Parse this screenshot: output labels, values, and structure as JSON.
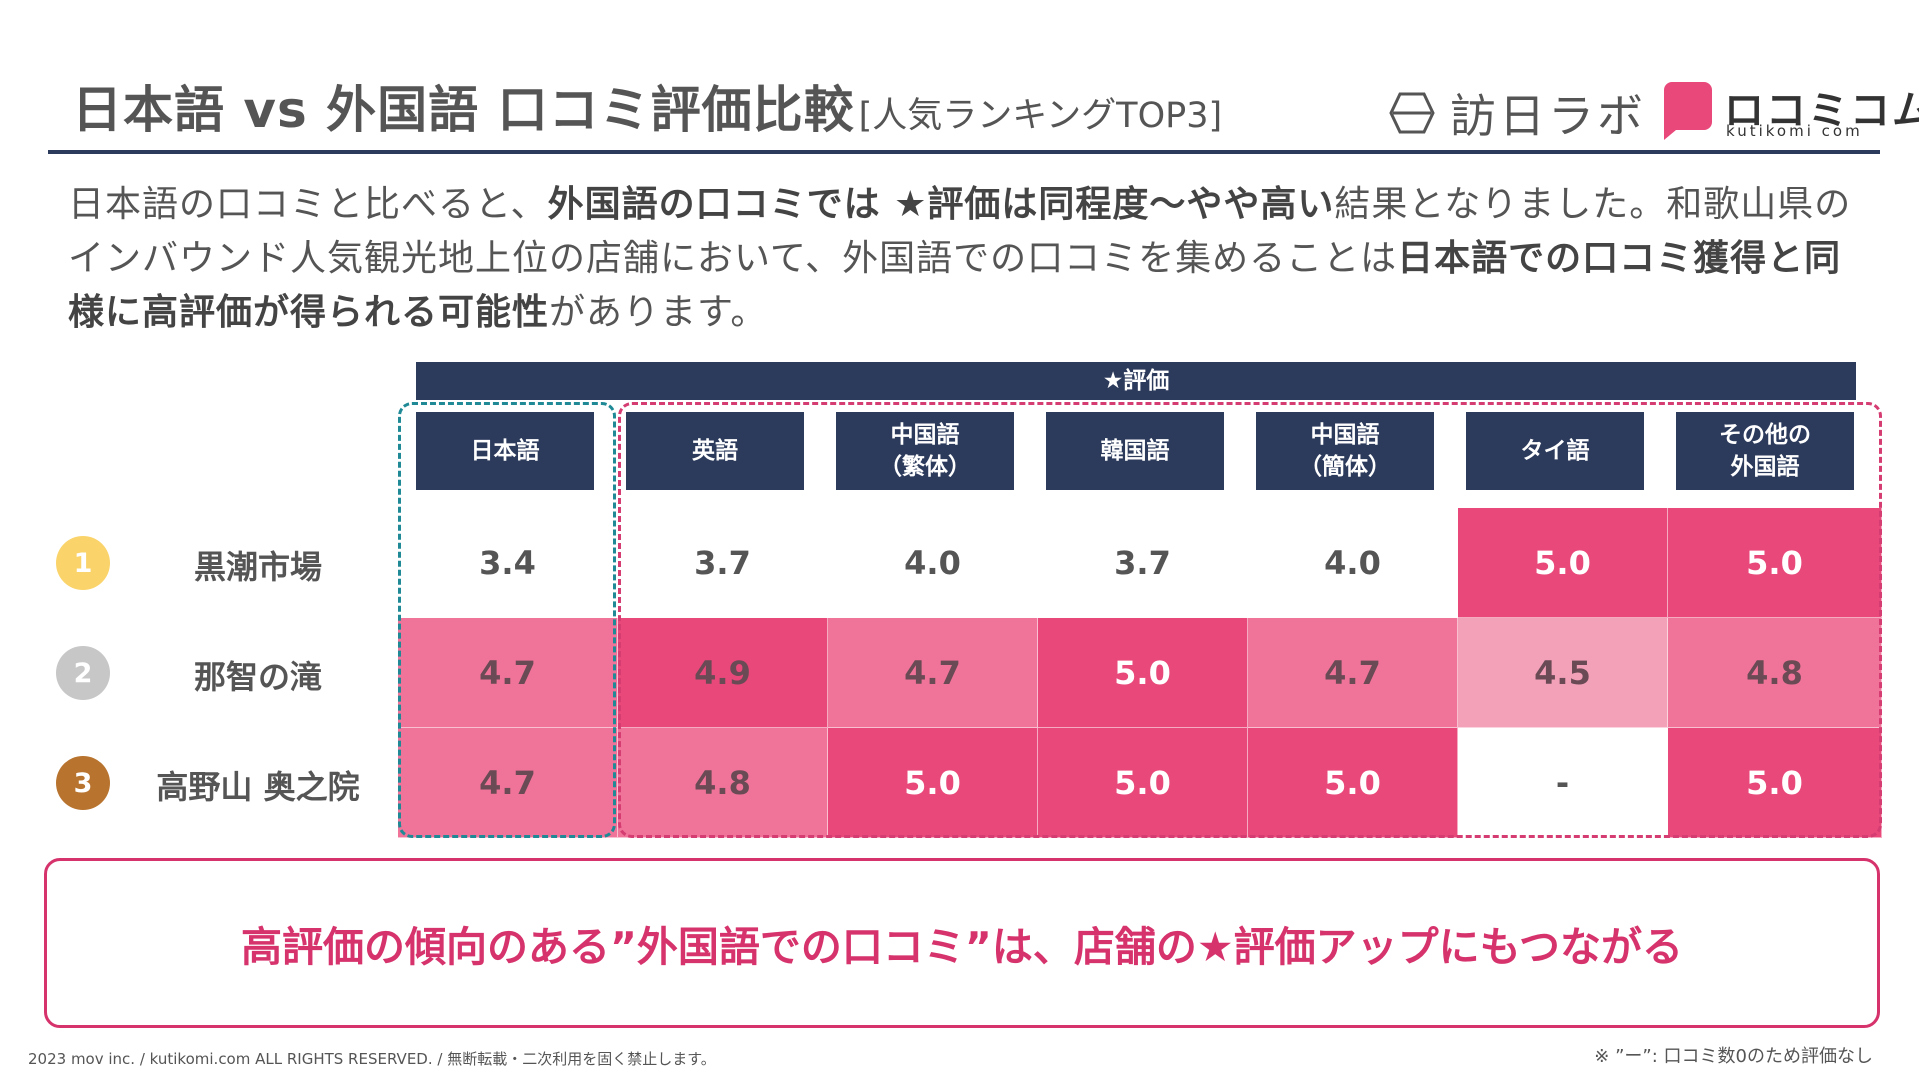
{
  "header": {
    "title": "日本語 vs 外国語 口コミ評価比較",
    "subtitle": "[人気ランキングTOP3]",
    "logo_houjin": "訪日ラボ",
    "logo_kutikomi_kana": "ロコミコム",
    "logo_kutikomi_roman": "kutikomi com"
  },
  "description": {
    "p1": "日本語の口コミと比べると、",
    "b1": "外国語の口コミでは ★評価は同程度〜やや高い",
    "p2": "結果となりました。和歌山県のインバウンド人気観光地上位の店舗において、外国語での口コミを集めることは",
    "b2": "日本語での口コミ獲得と同様に高評価が得られる可能性",
    "p3": "があります。"
  },
  "colors": {
    "navy": "#2c3a5c",
    "pink_dark": "#e9487a",
    "pink_mid": "#f07399",
    "pink_light": "#f3a0b9",
    "teal": "#1f8a96",
    "gold": "#fad46a",
    "silver": "#c7c7c7",
    "bronze": "#b8742f"
  },
  "chart_data": {
    "type": "table",
    "title": "★評価",
    "columns": [
      "日本語",
      "英語",
      "中国語\n（繁体）",
      "韓国語",
      "中国語\n（簡体）",
      "タイ語",
      "その他の\n外国語"
    ],
    "rows": [
      {
        "rank": "1",
        "store": "黒潮市場",
        "values": [
          "3.4",
          "3.7",
          "4.0",
          "3.7",
          "4.0",
          "5.0",
          "5.0"
        ]
      },
      {
        "rank": "2",
        "store": "那智の滝",
        "values": [
          "4.7",
          "4.9",
          "4.7",
          "5.0",
          "4.7",
          "4.5",
          "4.8"
        ]
      },
      {
        "rank": "3",
        "store": "高野山 奥之院",
        "values": [
          "4.7",
          "4.8",
          "5.0",
          "5.0",
          "5.0",
          "-",
          "5.0"
        ]
      }
    ]
  },
  "conclusion": "高評価の傾向のある”外国語での口コミ”は、店舗の★評価アップにもつながる",
  "footer": {
    "copyright": "2023 mov inc. / kutikomi.com ALL RIGHTS RESERVED. / 無断転載・二次利用を固く禁止します。",
    "note": "※ ”ー”: 口コミ数0のため評価なし"
  }
}
